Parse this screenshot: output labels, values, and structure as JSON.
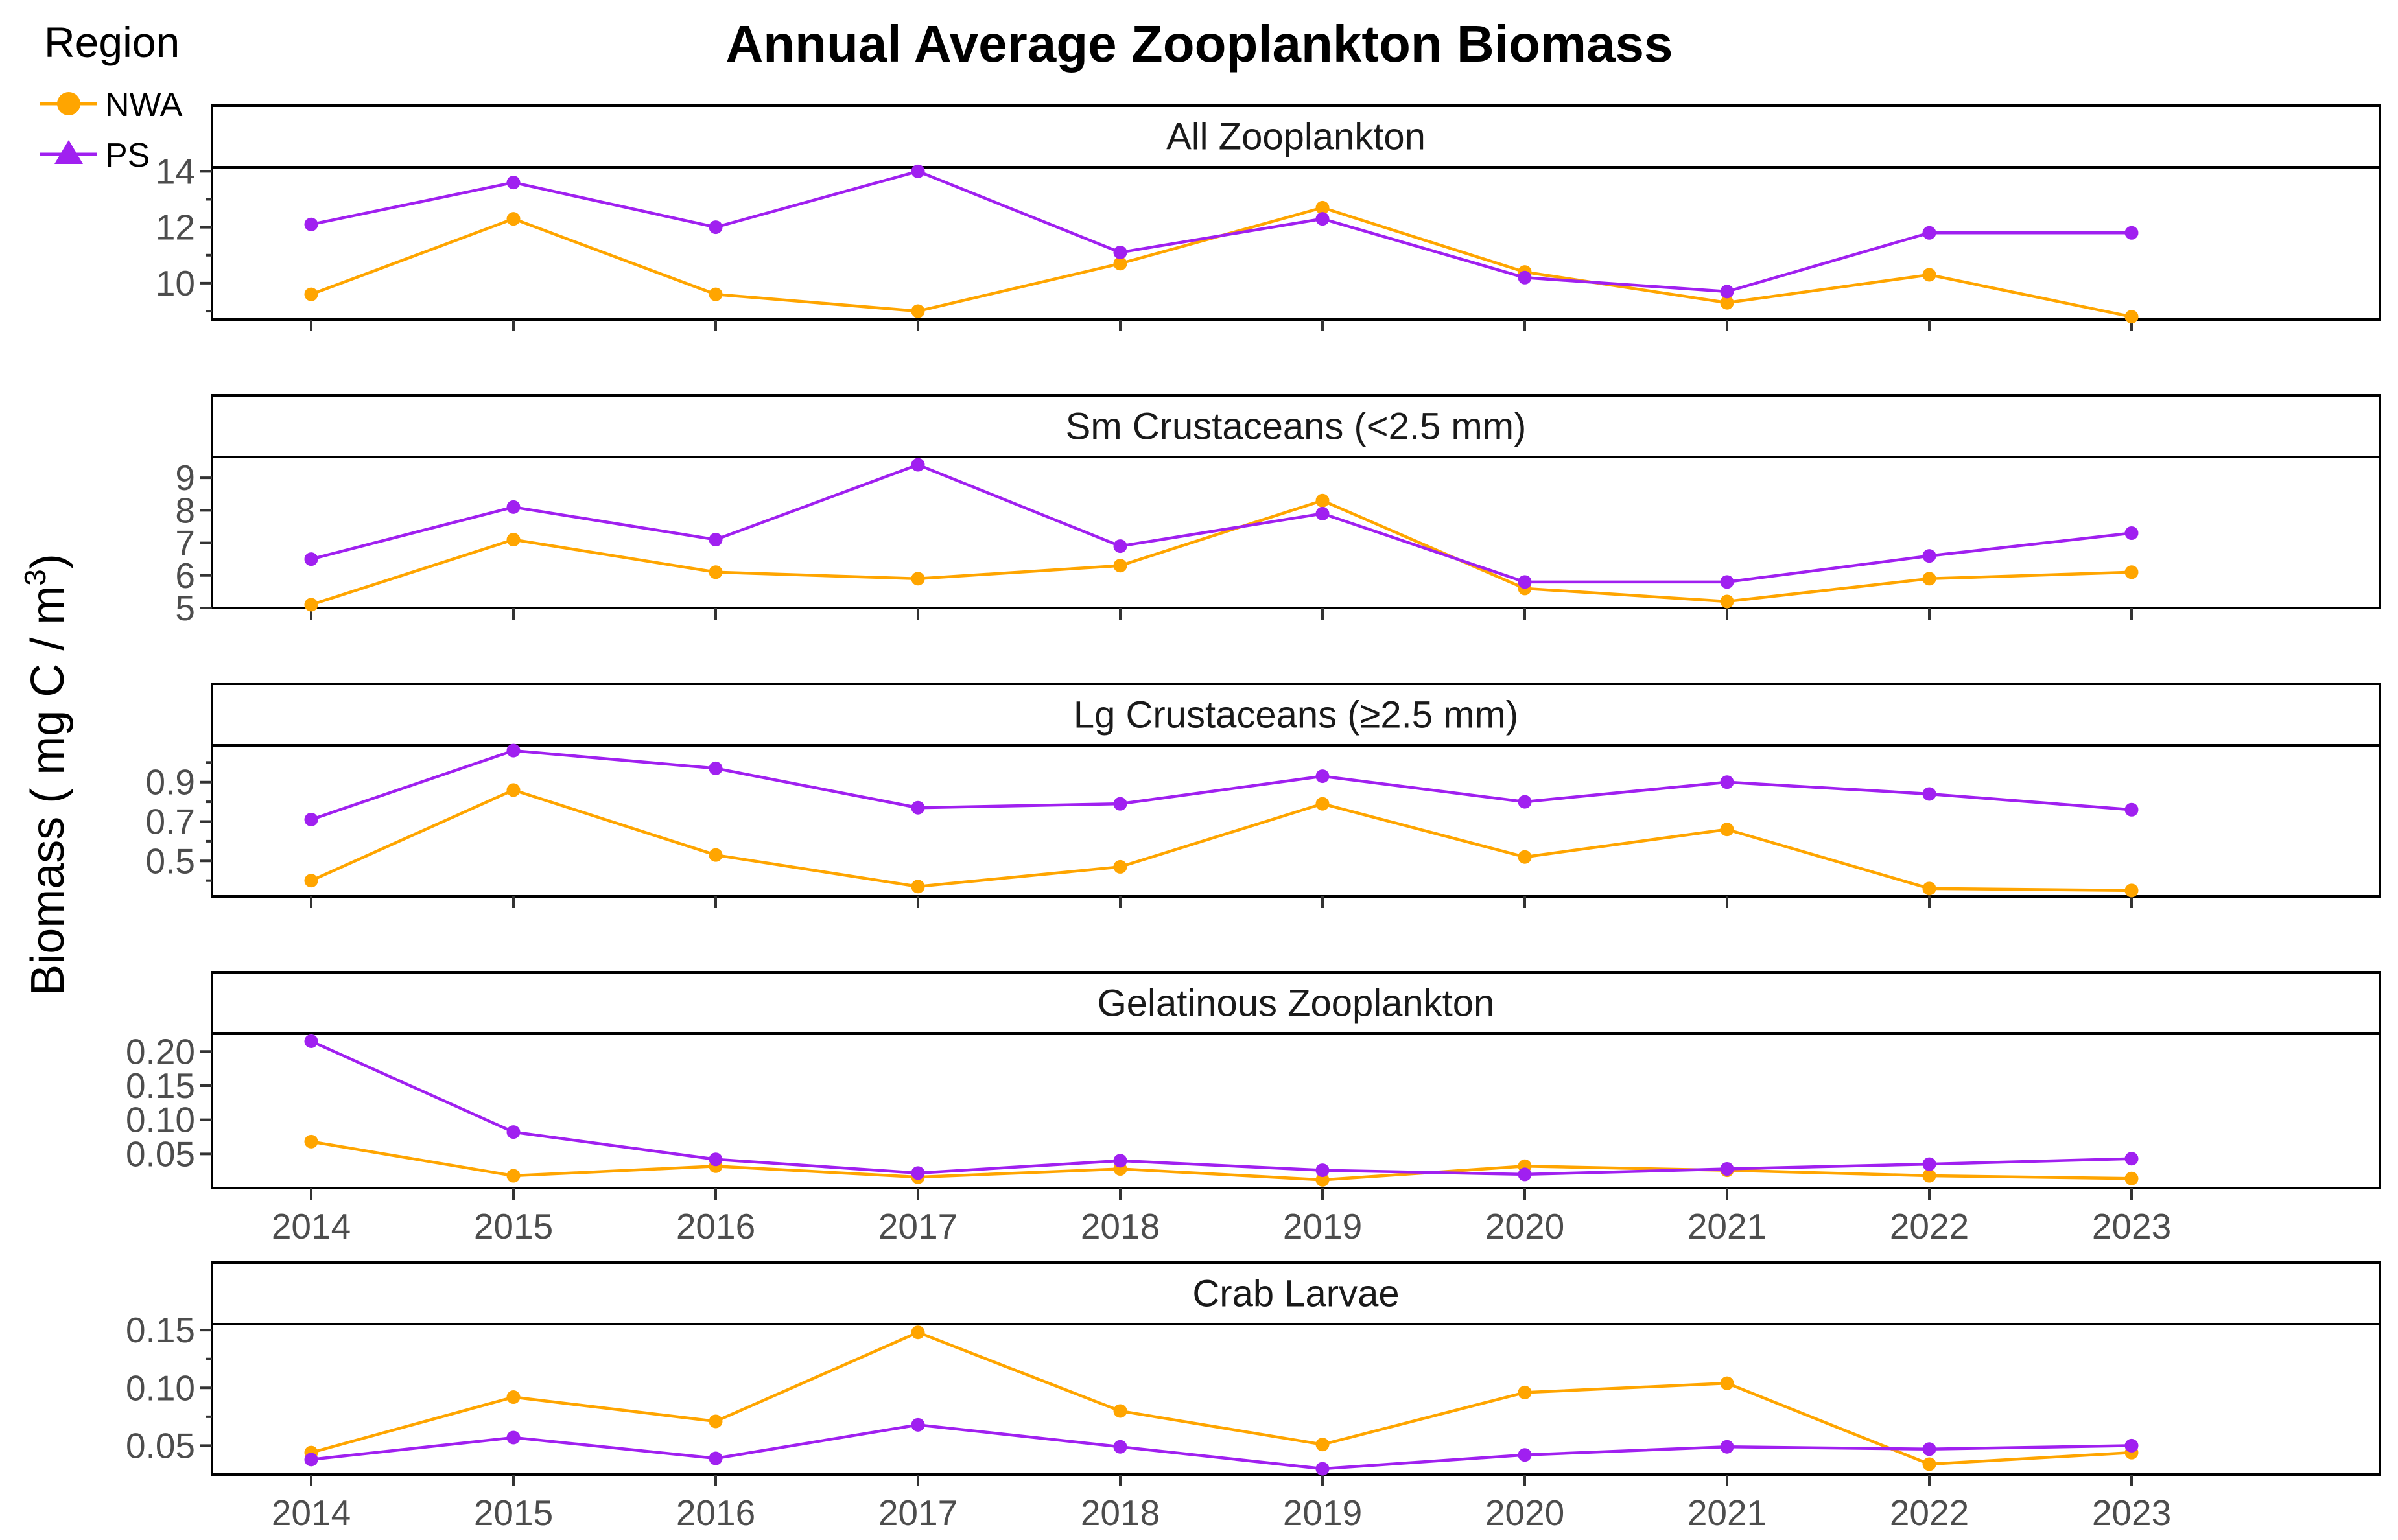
{
  "chart_data": {
    "type": "line",
    "title": "Annual Average Zooplankton Biomass",
    "ylabel": "Biomass ( mg C / m3)",
    "ylabel_parts": {
      "main": "Biomass ( mg C / m",
      "sup": "3",
      "end": ")"
    },
    "legend": {
      "title": "Region",
      "placement": "top-left"
    },
    "x": [
      "2014",
      "2015",
      "2016",
      "2017",
      "2018",
      "2019",
      "2020",
      "2021",
      "2022",
      "2023"
    ],
    "series_styles": [
      {
        "name": "NWA",
        "color": "#FFA500",
        "marker": "circle"
      },
      {
        "name": "PS",
        "color": "#A020F0",
        "marker": "triangle"
      }
    ],
    "grid": false,
    "panels": [
      {
        "strip": "All Zooplankton",
        "ylim": [
          8.7,
          14.1
        ],
        "yticks": [
          10,
          12,
          14
        ],
        "ytick_labels": [
          "10",
          "12",
          "14"
        ],
        "minor_yticks": [
          9,
          11,
          13
        ],
        "show_x_labels": false,
        "series": [
          {
            "name": "NWA",
            "values": [
              9.6,
              12.3,
              9.6,
              9.0,
              10.7,
              12.7,
              10.4,
              9.3,
              10.3,
              8.8
            ]
          },
          {
            "name": "PS",
            "values": [
              12.1,
              13.6,
              12.0,
              14.0,
              11.1,
              12.3,
              10.2,
              9.7,
              11.8,
              11.8
            ]
          }
        ]
      },
      {
        "strip": "Sm Crustaceans (<2.5 mm)",
        "ylim": [
          5.0,
          9.6
        ],
        "yticks": [
          5,
          6,
          7,
          8,
          9
        ],
        "ytick_labels": [
          "5",
          "6",
          "7",
          "8",
          "9"
        ],
        "minor_yticks": [],
        "show_x_labels": false,
        "series": [
          {
            "name": "NWA",
            "values": [
              5.1,
              7.1,
              6.1,
              5.9,
              6.3,
              8.3,
              5.6,
              5.2,
              5.9,
              6.1
            ]
          },
          {
            "name": "PS",
            "values": [
              6.5,
              8.1,
              7.1,
              9.4,
              6.9,
              7.9,
              5.8,
              5.8,
              6.6,
              7.3
            ]
          }
        ]
      },
      {
        "strip": "Lg Crustaceans (≥2.5 mm)",
        "ylim": [
          0.32,
          1.08
        ],
        "yticks": [
          0.5,
          0.7,
          0.9
        ],
        "ytick_labels": [
          "0.5",
          "0.7",
          "0.9"
        ],
        "minor_yticks": [
          0.4,
          0.6,
          0.8,
          1.0
        ],
        "show_x_labels": false,
        "series": [
          {
            "name": "NWA",
            "values": [
              0.4,
              0.86,
              0.53,
              0.37,
              0.47,
              0.79,
              0.52,
              0.66,
              0.36,
              0.35
            ]
          },
          {
            "name": "PS",
            "values": [
              0.71,
              1.06,
              0.97,
              0.77,
              0.79,
              0.93,
              0.8,
              0.9,
              0.84,
              0.76
            ]
          }
        ]
      },
      {
        "strip": "Gelatinous Zooplankton",
        "ylim": [
          0.0,
          0.224
        ],
        "yticks": [
          0.05,
          0.1,
          0.15,
          0.2
        ],
        "ytick_labels": [
          "0.05",
          "0.10",
          "0.15",
          "0.20"
        ],
        "minor_yticks": [],
        "show_x_labels": true,
        "series": [
          {
            "name": "NWA",
            "values": [
              0.068,
              0.018,
              0.032,
              0.016,
              0.028,
              0.012,
              0.032,
              0.026,
              0.018,
              0.014
            ]
          },
          {
            "name": "PS",
            "values": [
              0.215,
              0.082,
              0.042,
              0.022,
              0.04,
              0.026,
              0.02,
              0.028,
              0.035,
              0.043
            ]
          }
        ]
      },
      {
        "strip": "Crab Larvae",
        "ylim": [
          0.025,
          0.154
        ],
        "yticks": [
          0.05,
          0.1,
          0.15
        ],
        "ytick_labels": [
          "0.05",
          "0.10",
          "0.15"
        ],
        "minor_yticks": [
          0.075,
          0.125
        ],
        "show_x_labels": true,
        "series": [
          {
            "name": "NWA",
            "values": [
              0.044,
              0.092,
              0.071,
              0.148,
              0.08,
              0.051,
              0.096,
              0.104,
              0.034,
              0.044
            ]
          },
          {
            "name": "PS",
            "values": [
              0.038,
              0.057,
              0.039,
              0.068,
              0.049,
              0.03,
              0.042,
              0.049,
              0.047,
              0.05
            ]
          }
        ]
      }
    ]
  }
}
